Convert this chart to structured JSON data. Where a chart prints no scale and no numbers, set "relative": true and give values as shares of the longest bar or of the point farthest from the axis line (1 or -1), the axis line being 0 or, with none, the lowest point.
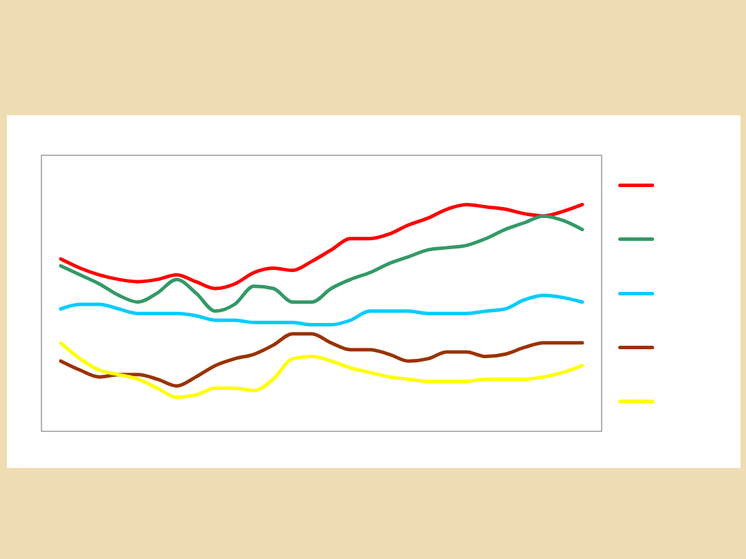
{
  "chart_data": {
    "type": "line",
    "relative": true,
    "categories": [
      null,
      null,
      null,
      null,
      null,
      null,
      null,
      null,
      null,
      null,
      null,
      null,
      null,
      null,
      null,
      null,
      null,
      null,
      null,
      null,
      null,
      null,
      null,
      null,
      null,
      null,
      null,
      null
    ],
    "series": [
      {
        "color": "#ff0000",
        "values": [
          0.76,
          0.72,
          0.69,
          0.67,
          0.66,
          0.67,
          0.69,
          0.66,
          0.63,
          0.65,
          0.7,
          0.72,
          0.71,
          0.75,
          0.8,
          0.85,
          0.85,
          0.87,
          0.91,
          0.94,
          0.98,
          1,
          0.99,
          0.98,
          0.96,
          0.95,
          0.97,
          1
        ]
      },
      {
        "color": "#339966",
        "values": [
          0.73,
          0.69,
          0.65,
          0.6,
          0.57,
          0.61,
          0.67,
          0.61,
          0.53,
          0.56,
          0.64,
          0.63,
          0.57,
          0.57,
          0.63,
          0.67,
          0.7,
          0.74,
          0.77,
          0.8,
          0.81,
          0.82,
          0.85,
          0.89,
          0.92,
          0.95,
          0.93,
          0.89
        ]
      },
      {
        "color": "#00ccff",
        "values": [
          0.54,
          0.56,
          0.56,
          0.54,
          0.52,
          0.52,
          0.52,
          0.51,
          0.49,
          0.49,
          0.48,
          0.48,
          0.48,
          0.47,
          0.47,
          0.49,
          0.53,
          0.53,
          0.53,
          0.52,
          0.52,
          0.52,
          0.53,
          0.54,
          0.58,
          0.6,
          0.59,
          0.57
        ]
      },
      {
        "color": "#993300",
        "values": [
          0.31,
          0.27,
          0.24,
          0.25,
          0.25,
          0.23,
          0.2,
          0.24,
          0.29,
          0.32,
          0.34,
          0.38,
          0.43,
          0.43,
          0.39,
          0.36,
          0.36,
          0.34,
          0.31,
          0.32,
          0.35,
          0.35,
          0.33,
          0.34,
          0.37,
          0.39,
          0.39,
          0.39
        ]
      },
      {
        "color": "#ffff00",
        "values": [
          0.39,
          0.32,
          0.27,
          0.25,
          0.23,
          0.19,
          0.15,
          0.16,
          0.19,
          0.19,
          0.18,
          0.23,
          0.32,
          0.33,
          0.31,
          0.28,
          0.26,
          0.24,
          0.23,
          0.22,
          0.22,
          0.22,
          0.23,
          0.23,
          0.23,
          0.24,
          0.26,
          0.29
        ]
      }
    ]
  }
}
